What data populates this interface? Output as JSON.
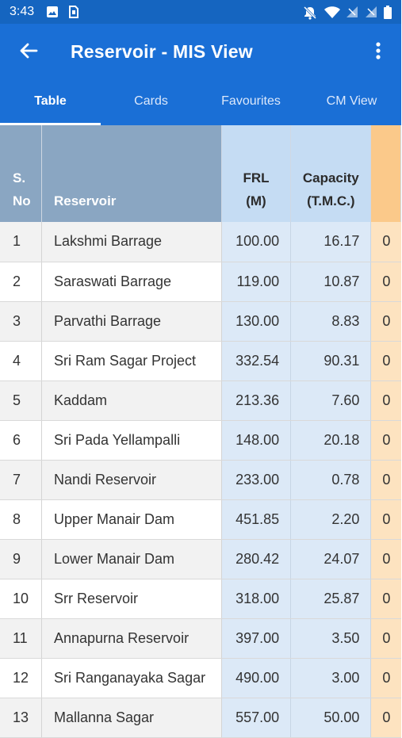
{
  "status_bar": {
    "time": "3:43",
    "left_icons": [
      "image-icon",
      "sim-card-icon"
    ],
    "right_icons": [
      "notifications-off-icon",
      "wifi-icon",
      "signal-no-data-icon",
      "signal-no-data-icon",
      "battery-icon"
    ]
  },
  "app_bar": {
    "title": "Reservoir - MIS View",
    "back_icon": "arrow-back-icon",
    "menu_icon": "more-vert-icon"
  },
  "tabs": [
    {
      "label": "Table",
      "active": true
    },
    {
      "label": "Cards",
      "active": false
    },
    {
      "label": "Favourites",
      "active": false
    },
    {
      "label": "CM View",
      "active": false
    }
  ],
  "colors": {
    "app_bar": "#1a6fd6",
    "status_bar": "#1565c0",
    "header_grey": "#8aa6c2",
    "blue_columns": "#dce9f7",
    "orange_column": "#fde3c0"
  },
  "table": {
    "headers": {
      "sno": [
        "S.",
        "No"
      ],
      "reservoir": "Reservoir",
      "frl": [
        "FRL",
        "(M)"
      ],
      "capacity": [
        "Capacity",
        "(T.M.C.)"
      ]
    },
    "rows": [
      {
        "sno": "1",
        "name": "Lakshmi Barrage",
        "frl": "100.00",
        "capacity": "16.17",
        "extra": "0"
      },
      {
        "sno": "2",
        "name": "Saraswati Barrage",
        "frl": "119.00",
        "capacity": "10.87",
        "extra": "0"
      },
      {
        "sno": "3",
        "name": "Parvathi Barrage",
        "frl": "130.00",
        "capacity": "8.83",
        "extra": "0"
      },
      {
        "sno": "4",
        "name": "Sri Ram Sagar Project",
        "frl": "332.54",
        "capacity": "90.31",
        "extra": "0"
      },
      {
        "sno": "5",
        "name": "Kaddam",
        "frl": "213.36",
        "capacity": "7.60",
        "extra": "0"
      },
      {
        "sno": "6",
        "name": "Sri Pada Yellampalli",
        "frl": "148.00",
        "capacity": "20.18",
        "extra": "0"
      },
      {
        "sno": "7",
        "name": "Nandi Reservoir",
        "frl": "233.00",
        "capacity": "0.78",
        "extra": "0"
      },
      {
        "sno": "8",
        "name": "Upper Manair Dam",
        "frl": "451.85",
        "capacity": "2.20",
        "extra": "0"
      },
      {
        "sno": "9",
        "name": "Lower Manair Dam",
        "frl": "280.42",
        "capacity": "24.07",
        "extra": "0"
      },
      {
        "sno": "10",
        "name": "Srr Reservoir",
        "frl": "318.00",
        "capacity": "25.87",
        "extra": "0"
      },
      {
        "sno": "11",
        "name": "Annapurna Reservoir",
        "frl": "397.00",
        "capacity": "3.50",
        "extra": "0"
      },
      {
        "sno": "12",
        "name": "Sri Ranganayaka Sagar",
        "frl": "490.00",
        "capacity": "3.00",
        "extra": "0"
      },
      {
        "sno": "13",
        "name": "Mallanna Sagar",
        "frl": "557.00",
        "capacity": "50.00",
        "extra": "0"
      }
    ]
  }
}
